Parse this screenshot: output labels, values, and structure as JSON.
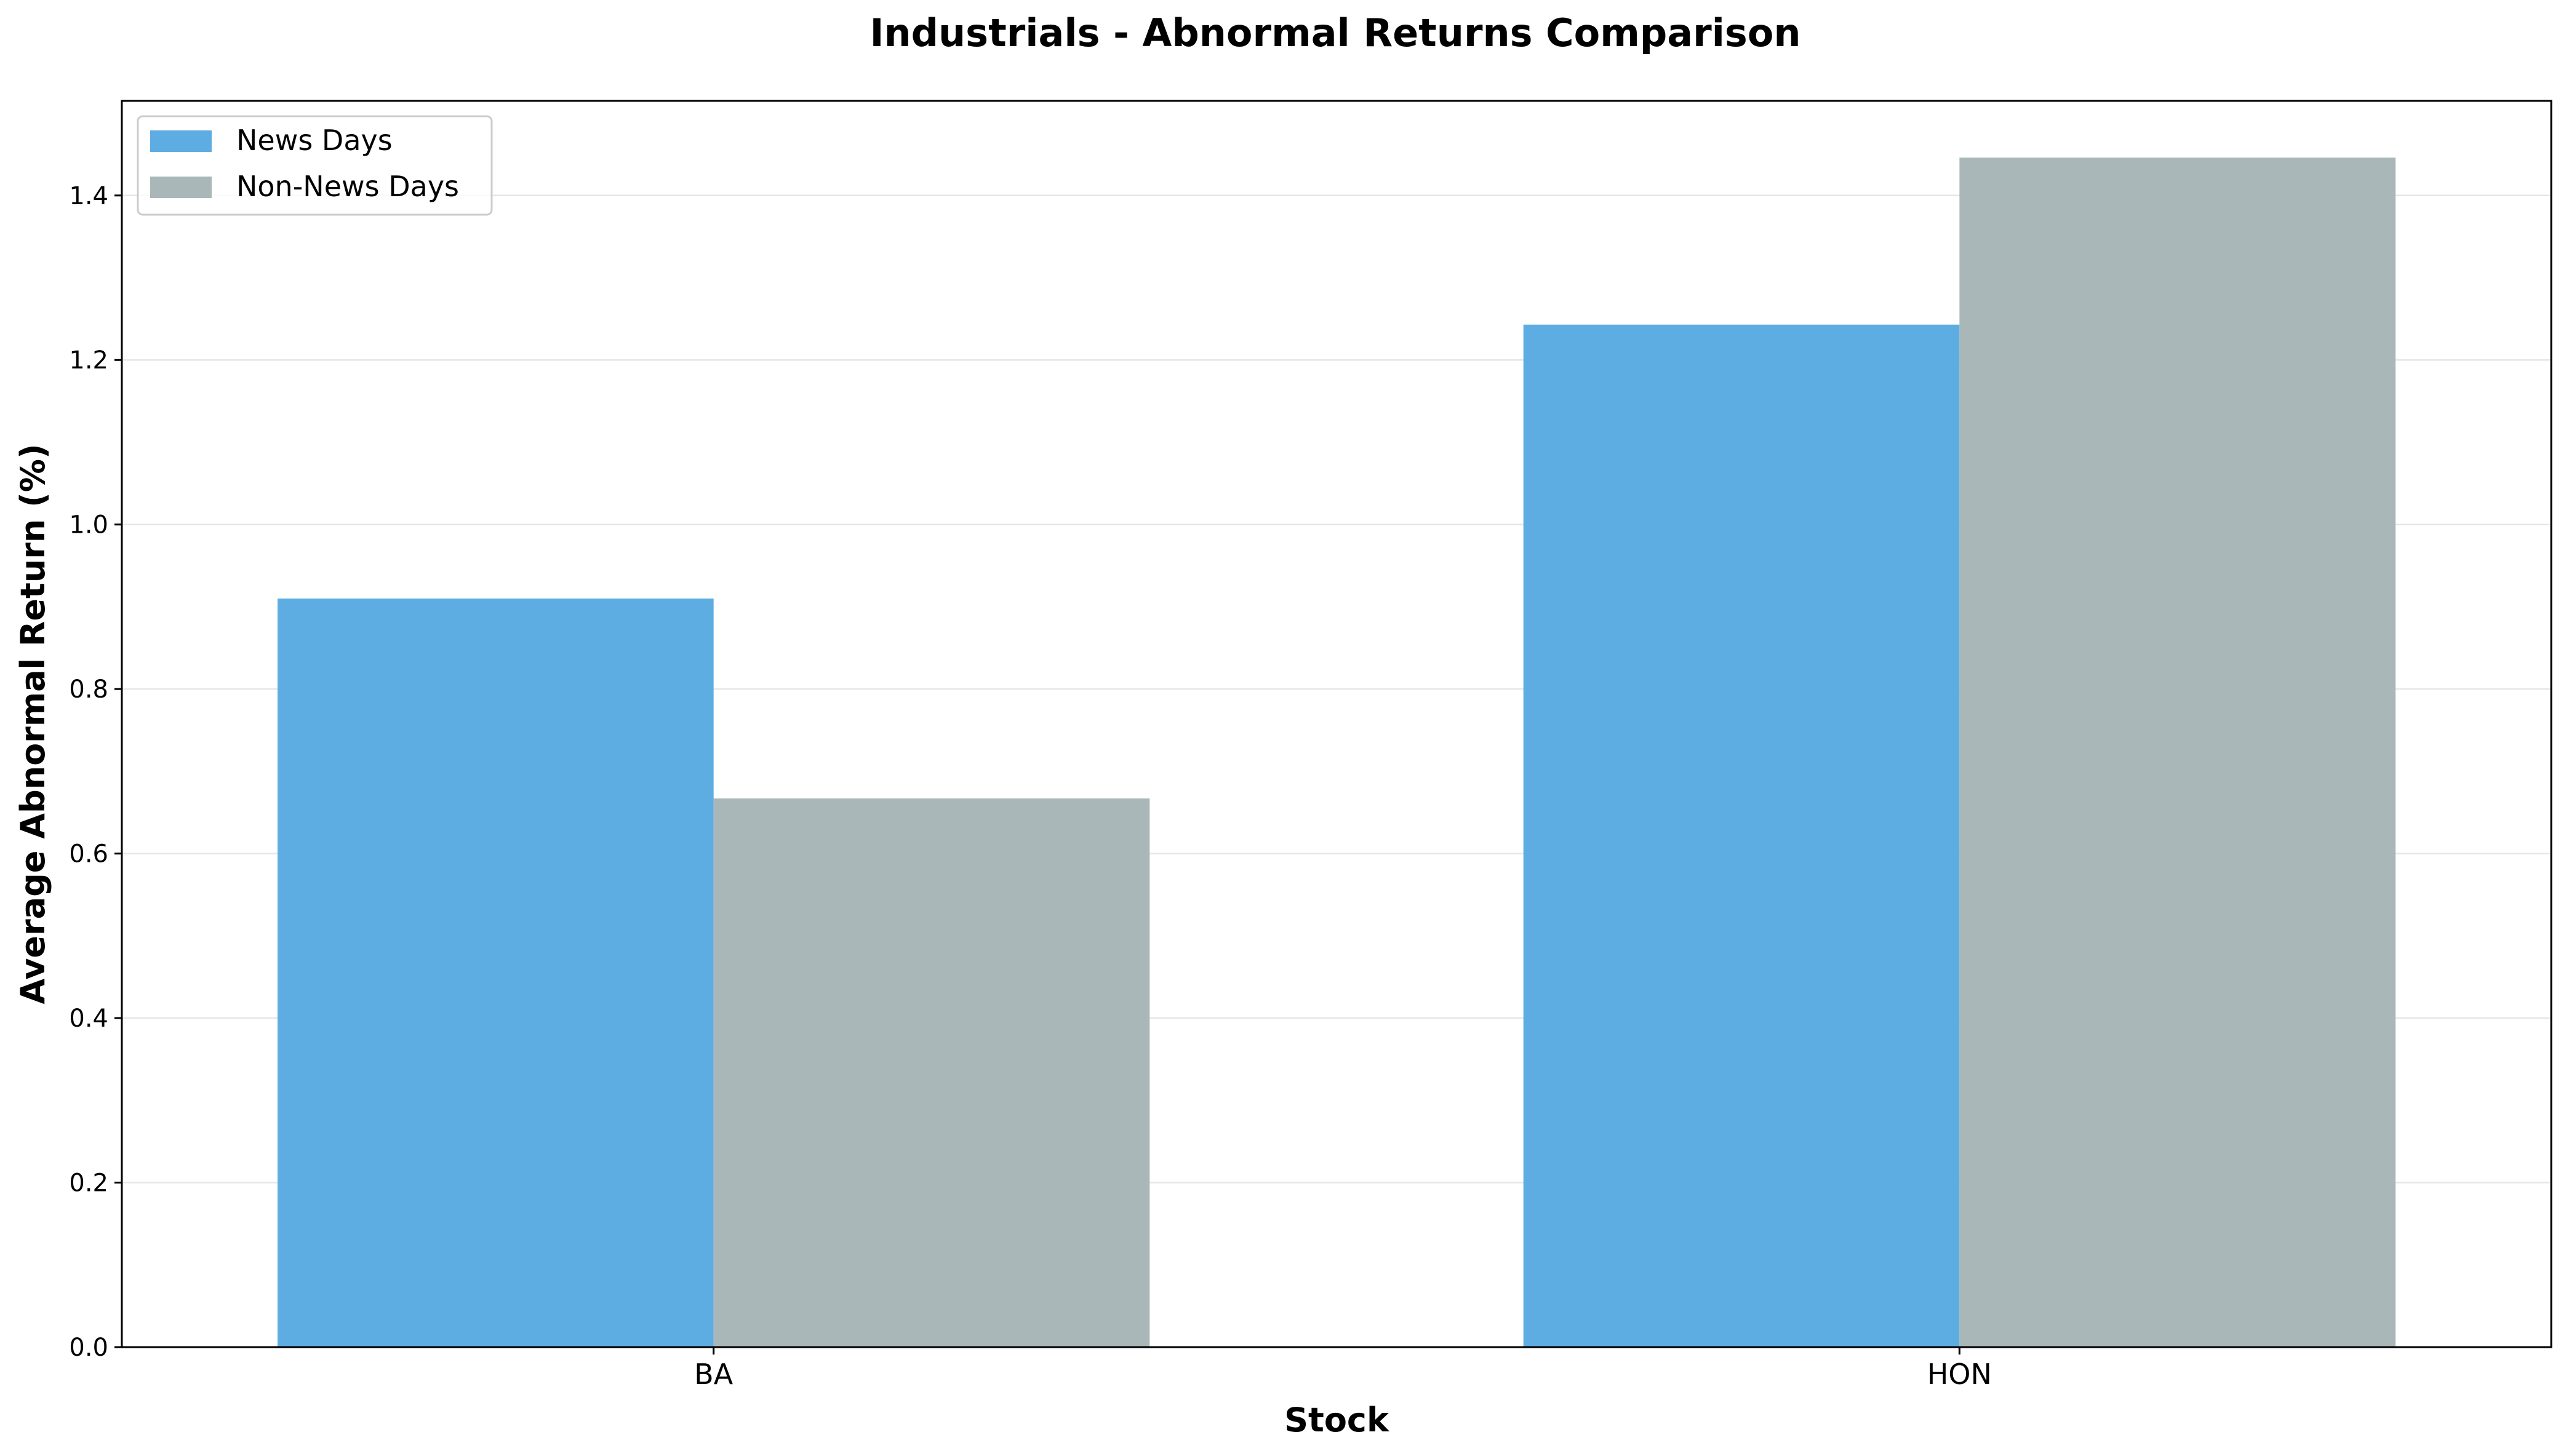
{
  "chart_data": {
    "type": "bar",
    "title": "Industrials - Abnormal Returns Comparison",
    "xlabel": "Stock",
    "ylabel": "Average Abnormal Return (%)",
    "categories": [
      "BA",
      "HON"
    ],
    "series": [
      {
        "name": "News Days",
        "values": [
          0.91,
          1.243
        ],
        "color": "#5dade2"
      },
      {
        "name": "Non-News Days",
        "values": [
          0.667,
          1.446
        ],
        "color": "#aab7b8"
      }
    ],
    "ylim": [
      0,
      1.515
    ],
    "yticks": [
      0.0,
      0.2,
      0.4,
      0.6,
      0.8,
      1.0,
      1.2,
      1.4
    ],
    "ytick_labels": [
      "0.0",
      "0.2",
      "0.4",
      "0.6",
      "0.8",
      "1.0",
      "1.2",
      "1.4"
    ],
    "grid": "horizontal",
    "legend_position": "top-left"
  }
}
